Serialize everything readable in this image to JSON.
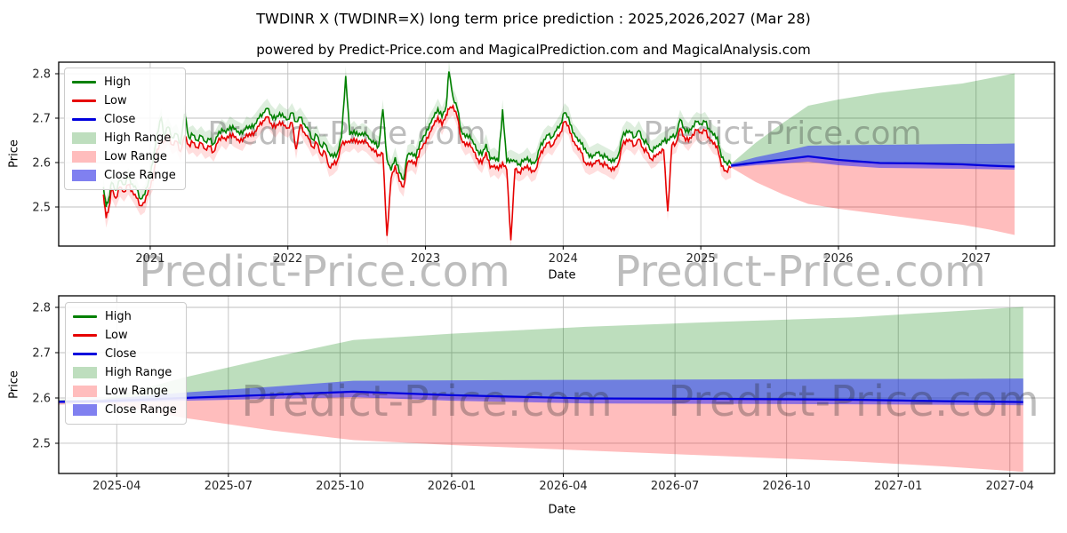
{
  "title": "TWDINR X (TWDINR=X) long term price prediction : 2025,2026,2027 (Mar 28)",
  "subtitle": "powered by Predict-Price.com and MagicalPrediction.com and MagicalAnalysis.com",
  "watermark_text": "Predict-Price.com",
  "colors": {
    "high_line": "#008000",
    "low_line": "#e60000",
    "close_line": "#0000dd",
    "high_band": "rgba(0,128,0,0.26)",
    "low_band": "rgba(255,0,0,0.26)",
    "close_band": "rgba(40,40,255,0.52)",
    "high_band_legend": "#bedebe",
    "low_band_legend": "#ffbdbd",
    "close_band_legend": "#8080f0",
    "grid": "#bfbfbf",
    "frame": "#000000",
    "watermark": "#999999"
  },
  "legend": [
    {
      "label": "High",
      "swatch": "line",
      "color": "high_line"
    },
    {
      "label": "Low",
      "swatch": "line",
      "color": "low_line"
    },
    {
      "label": "Close",
      "swatch": "line",
      "color": "close_line"
    },
    {
      "label": "High Range",
      "swatch": "patch",
      "color": "high_band_legend"
    },
    {
      "label": "Low Range",
      "swatch": "patch",
      "color": "low_band_legend"
    },
    {
      "label": "Close Range",
      "swatch": "patch",
      "color": "close_band_legend"
    }
  ],
  "chart_data": {
    "type": "line",
    "top": {
      "xlabel": "Date",
      "ylabel": "Price",
      "xlim": [
        2020.335,
        2027.57
      ],
      "ylim": [
        2.412,
        2.826
      ],
      "xticks": [
        {
          "v": 2021,
          "label": "2021"
        },
        {
          "v": 2022,
          "label": "2022"
        },
        {
          "v": 2023,
          "label": "2023"
        },
        {
          "v": 2024,
          "label": "2024"
        },
        {
          "v": 2025,
          "label": "2025"
        },
        {
          "v": 2026,
          "label": "2026"
        },
        {
          "v": 2027,
          "label": "2027"
        }
      ],
      "yticks": [
        {
          "v": 2.5,
          "label": "2.5"
        },
        {
          "v": 2.6,
          "label": "2.6"
        },
        {
          "v": 2.7,
          "label": "2.7"
        },
        {
          "v": 2.8,
          "label": "2.8"
        }
      ]
    },
    "bottom": {
      "xlabel": "Date",
      "ylabel": "Price",
      "xlim": [
        2025.12,
        2027.35
      ],
      "ylim": [
        2.4333,
        2.8255
      ],
      "xticks": [
        {
          "v": 2025.25,
          "label": "2025-04"
        },
        {
          "v": 2025.5,
          "label": "2025-07"
        },
        {
          "v": 2025.75,
          "label": "2025-10"
        },
        {
          "v": 2026.0,
          "label": "2026-01"
        },
        {
          "v": 2026.25,
          "label": "2026-04"
        },
        {
          "v": 2026.5,
          "label": "2026-07"
        },
        {
          "v": 2026.75,
          "label": "2026-10"
        },
        {
          "v": 2027.0,
          "label": "2027-01"
        },
        {
          "v": 2027.25,
          "label": "2027-04"
        }
      ],
      "yticks": [
        {
          "v": 2.5,
          "label": "2.5"
        },
        {
          "v": 2.6,
          "label": "2.6"
        },
        {
          "v": 2.7,
          "label": "2.7"
        },
        {
          "v": 2.8,
          "label": "2.8"
        }
      ]
    },
    "historical": {
      "x": [
        2020.66,
        2020.68,
        2020.7,
        2020.72,
        2020.75,
        2020.78,
        2020.81,
        2020.84,
        2020.87,
        2020.9,
        2020.93,
        2020.96,
        2020.99,
        2021.02,
        2021.05,
        2021.08,
        2021.1,
        2021.13,
        2021.16,
        2021.19,
        2021.22,
        2021.25,
        2021.28,
        2021.31,
        2021.34,
        2021.37,
        2021.4,
        2021.43,
        2021.46,
        2021.49,
        2021.52,
        2021.55,
        2021.58,
        2021.61,
        2021.64,
        2021.67,
        2021.7,
        2021.73,
        2021.76,
        2021.79,
        2021.82,
        2021.85,
        2021.88,
        2021.91,
        2021.94,
        2021.97,
        2022.0,
        2022.03,
        2022.06,
        2022.09,
        2022.12,
        2022.15,
        2022.18,
        2022.21,
        2022.24,
        2022.27,
        2022.3,
        2022.33,
        2022.36,
        2022.39,
        2022.42,
        2022.45,
        2022.48,
        2022.51,
        2022.54,
        2022.57,
        2022.6,
        2022.63,
        2022.66,
        2022.69,
        2022.72,
        2022.75,
        2022.78,
        2022.81,
        2022.84,
        2022.87,
        2022.9,
        2022.93,
        2022.96,
        2023.0,
        2023.03,
        2023.06,
        2023.09,
        2023.12,
        2023.15,
        2023.17,
        2023.2,
        2023.23,
        2023.26,
        2023.29,
        2023.32,
        2023.35,
        2023.38,
        2023.41,
        2023.44,
        2023.47,
        2023.5,
        2023.53,
        2023.56,
        2023.59,
        2023.62,
        2023.65,
        2023.68,
        2023.71,
        2023.74,
        2023.77,
        2023.8,
        2023.83,
        2023.86,
        2023.89,
        2023.92,
        2023.95,
        2023.98,
        2024.01,
        2024.04,
        2024.07,
        2024.1,
        2024.13,
        2024.16,
        2024.19,
        2024.22,
        2024.25,
        2024.28,
        2024.31,
        2024.34,
        2024.37,
        2024.4,
        2024.43,
        2024.46,
        2024.49,
        2024.52,
        2024.55,
        2024.58,
        2024.61,
        2024.64,
        2024.67,
        2024.7,
        2024.73,
        2024.76,
        2024.79,
        2024.82,
        2024.85,
        2024.88,
        2024.91,
        2024.94,
        2024.97,
        2025.0,
        2025.03,
        2025.06,
        2025.09,
        2025.12,
        2025.15,
        2025.18,
        2025.22
      ],
      "high": [
        2.545,
        2.5,
        2.52,
        2.555,
        2.538,
        2.56,
        2.55,
        2.566,
        2.552,
        2.54,
        2.518,
        2.528,
        2.56,
        2.6,
        2.665,
        2.7,
        2.662,
        2.68,
        2.656,
        2.665,
        2.642,
        2.71,
        2.657,
        2.662,
        2.65,
        2.66,
        2.647,
        2.652,
        2.642,
        2.66,
        2.676,
        2.667,
        2.682,
        2.675,
        2.67,
        2.665,
        2.682,
        2.677,
        2.687,
        2.7,
        2.712,
        2.722,
        2.707,
        2.697,
        2.712,
        2.702,
        2.697,
        2.712,
        2.692,
        2.702,
        2.687,
        2.672,
        2.652,
        2.662,
        2.637,
        2.642,
        2.622,
        2.612,
        2.622,
        2.657,
        2.795,
        2.662,
        2.672,
        2.66,
        2.667,
        2.662,
        2.652,
        2.642,
        2.637,
        2.72,
        2.607,
        2.582,
        2.612,
        2.577,
        2.562,
        2.617,
        2.622,
        2.612,
        2.647,
        2.662,
        2.687,
        2.702,
        2.722,
        2.702,
        2.727,
        2.805,
        2.747,
        2.722,
        2.672,
        2.657,
        2.662,
        2.642,
        2.627,
        2.617,
        2.642,
        2.607,
        2.612,
        2.602,
        2.72,
        2.602,
        2.607,
        2.602,
        2.597,
        2.602,
        2.612,
        2.597,
        2.602,
        2.632,
        2.652,
        2.662,
        2.657,
        2.672,
        2.687,
        2.712,
        2.702,
        2.667,
        2.657,
        2.642,
        2.632,
        2.612,
        2.617,
        2.622,
        2.617,
        2.612,
        2.607,
        2.602,
        2.617,
        2.657,
        2.672,
        2.667,
        2.657,
        2.672,
        2.652,
        2.642,
        2.627,
        2.632,
        2.642,
        2.647,
        2.652,
        2.657,
        2.662,
        2.697,
        2.677,
        2.667,
        2.682,
        2.692,
        2.687,
        2.692,
        2.677,
        2.662,
        2.657,
        2.612,
        2.602,
        2.597
      ],
      "low": [
        2.528,
        2.475,
        2.5,
        2.54,
        2.52,
        2.545,
        2.534,
        2.55,
        2.536,
        2.52,
        2.503,
        2.51,
        2.542,
        2.56,
        2.63,
        2.645,
        2.648,
        2.663,
        2.64,
        2.648,
        2.625,
        2.66,
        2.64,
        2.645,
        2.634,
        2.644,
        2.63,
        2.636,
        2.624,
        2.645,
        2.66,
        2.65,
        2.665,
        2.657,
        2.652,
        2.648,
        2.664,
        2.66,
        2.67,
        2.682,
        2.694,
        2.703,
        2.688,
        2.678,
        2.692,
        2.683,
        2.678,
        2.69,
        2.63,
        2.685,
        2.668,
        2.654,
        2.635,
        2.644,
        2.618,
        2.624,
        2.59,
        2.595,
        2.605,
        2.64,
        2.648,
        2.645,
        2.654,
        2.643,
        2.65,
        2.645,
        2.635,
        2.624,
        2.618,
        2.62,
        2.435,
        2.564,
        2.594,
        2.558,
        2.545,
        2.6,
        2.605,
        2.594,
        2.63,
        2.644,
        2.668,
        2.684,
        2.703,
        2.684,
        2.708,
        2.72,
        2.728,
        2.703,
        2.654,
        2.638,
        2.644,
        2.624,
        2.608,
        2.598,
        2.624,
        2.588,
        2.594,
        2.584,
        2.6,
        2.584,
        2.425,
        2.585,
        2.579,
        2.584,
        2.594,
        2.578,
        2.584,
        2.614,
        2.634,
        2.644,
        2.638,
        2.654,
        2.668,
        2.692,
        2.683,
        2.648,
        2.638,
        2.623,
        2.6,
        2.594,
        2.598,
        2.604,
        2.598,
        2.594,
        2.588,
        2.583,
        2.598,
        2.638,
        2.652,
        2.648,
        2.638,
        2.653,
        2.633,
        2.623,
        2.608,
        2.613,
        2.624,
        2.628,
        2.49,
        2.639,
        2.644,
        2.676,
        2.658,
        2.648,
        2.663,
        2.673,
        2.668,
        2.672,
        2.657,
        2.642,
        2.637,
        2.592,
        2.582,
        2.588
      ]
    },
    "forecast": {
      "x": [
        2025.12,
        2025.22,
        2025.4,
        2025.6,
        2025.78,
        2026.0,
        2026.3,
        2026.6,
        2026.9,
        2027.1,
        2027.28
      ],
      "close": [
        2.592,
        2.593,
        2.6,
        2.607,
        2.614,
        2.606,
        2.599,
        2.598,
        2.596,
        2.593,
        2.591
      ],
      "close_upper": [
        2.594,
        2.597,
        2.612,
        2.625,
        2.638,
        2.639,
        2.64,
        2.641,
        2.642,
        2.642,
        2.643
      ],
      "close_lower": [
        2.588,
        2.589,
        2.594,
        2.598,
        2.602,
        2.594,
        2.588,
        2.587,
        2.586,
        2.585,
        2.584
      ],
      "high_upper": [
        2.596,
        2.597,
        2.645,
        2.69,
        2.728,
        2.742,
        2.757,
        2.768,
        2.778,
        2.79,
        2.801
      ],
      "low_lower": [
        2.585,
        2.589,
        2.556,
        2.528,
        2.507,
        2.496,
        2.484,
        2.472,
        2.46,
        2.449,
        2.437
      ]
    },
    "forecast_start_index_top": 1,
    "envelope_halfwidth": 0.022
  }
}
